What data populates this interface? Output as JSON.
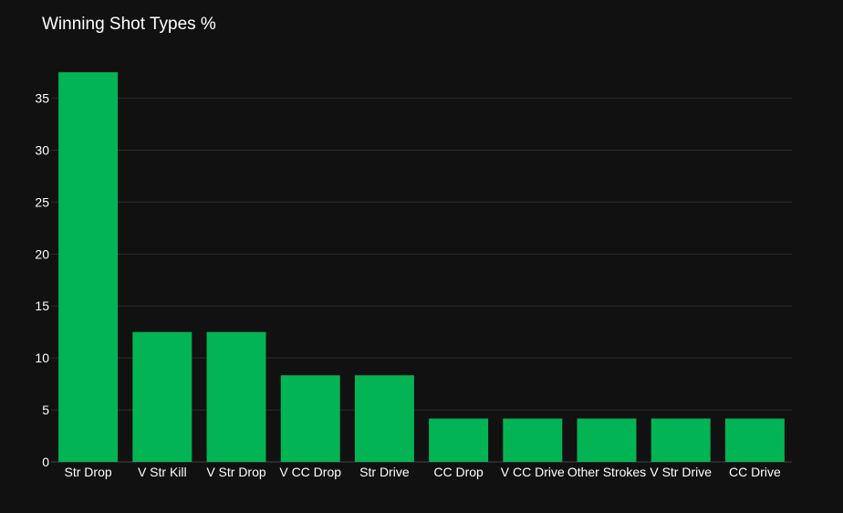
{
  "chart_data": {
    "type": "bar",
    "title": "Winning Shot Types %",
    "xlabel": "",
    "ylabel": "",
    "categories": [
      "Str Drop",
      "V Str Kill",
      "V Str Drop",
      "V CC Drop",
      "Str Drive",
      "CC Drop",
      "V CC Drive",
      "Other Strokes",
      "V Str Drive",
      "CC Drive"
    ],
    "values": [
      37.5,
      12.5,
      12.5,
      8.33,
      8.33,
      4.17,
      4.17,
      4.17,
      4.17,
      4.17
    ],
    "ylim": [
      0,
      38.3
    ],
    "yticks": [
      0,
      5,
      10,
      15,
      20,
      25,
      30,
      35
    ],
    "grid": true,
    "legend": "none",
    "colors": {
      "bar": "#03b454",
      "background": "#111111",
      "grid": "#2c2c2c",
      "text": "#ffffff"
    }
  }
}
